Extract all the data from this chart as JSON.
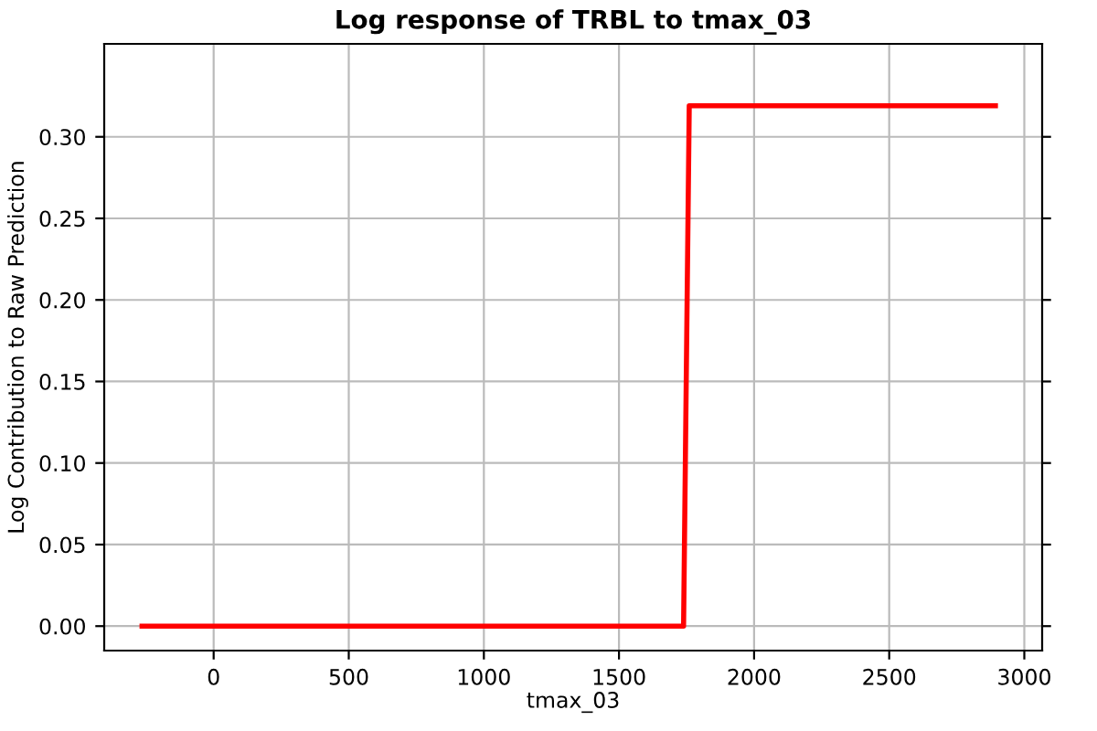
{
  "chart_data": {
    "type": "line",
    "title": "Log response of TRBL to tmax_03",
    "xlabel": "tmax_03",
    "ylabel": "Log Contribution to Raw Prediction",
    "series": [
      {
        "color": "#ff0000",
        "x": [
          -265,
          1739,
          1760,
          2893
        ],
        "values": [
          0,
          0,
          0.319,
          0.319
        ]
      }
    ],
    "xlim": [
      -405,
      3066
    ],
    "xticks": [
      0,
      500,
      1000,
      1500,
      2000,
      2500,
      3000
    ],
    "ylim": [
      -0.015,
      0.357
    ],
    "yticks": [
      {
        "value": 0,
        "label": "0.00"
      },
      {
        "value": 0.05,
        "label": "0.05"
      },
      {
        "value": 0.1,
        "label": "0.10"
      },
      {
        "value": 0.15,
        "label": "0.15"
      },
      {
        "value": 0.2,
        "label": "0.20"
      },
      {
        "value": 0.25,
        "label": "0.25"
      },
      {
        "value": 0.3,
        "label": "0.30"
      }
    ],
    "grid": true,
    "line_style": "solid"
  }
}
